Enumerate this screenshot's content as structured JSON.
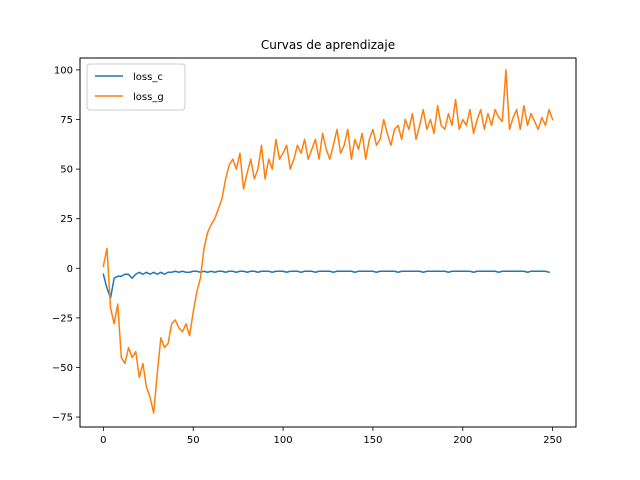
{
  "chart_data": {
    "type": "line",
    "title": "Curvas de aprendizaje",
    "xlabel": "",
    "ylabel": "",
    "xlim": [
      -13,
      263
    ],
    "ylim": [
      -80,
      106
    ],
    "xticks": [
      0,
      50,
      100,
      150,
      200,
      250
    ],
    "yticks": [
      -75,
      -50,
      -25,
      0,
      25,
      50,
      75,
      100
    ],
    "grid": false,
    "legend": "top-left",
    "x_start": 0,
    "x_step": 2,
    "series": [
      {
        "name": "loss_c",
        "color": "#1f77b4",
        "values": [
          -3,
          -10,
          -15,
          -5,
          -4,
          -4,
          -3,
          -3,
          -5,
          -3,
          -2,
          -3,
          -2,
          -3,
          -2,
          -3,
          -2,
          -3,
          -2,
          -2,
          -1.5,
          -2,
          -1.5,
          -2,
          -2,
          -1.5,
          -1.5,
          -2,
          -1.5,
          -2,
          -1.5,
          -2,
          -1.5,
          -1.5,
          -2,
          -1.5,
          -1.5,
          -2,
          -1.5,
          -1.5,
          -2,
          -1.5,
          -1.5,
          -2,
          -1.5,
          -1.5,
          -1.5,
          -2,
          -1.5,
          -1.5,
          -1.5,
          -2,
          -1.5,
          -1.5,
          -1.5,
          -2,
          -1.5,
          -1.5,
          -1.5,
          -2,
          -1.5,
          -1.5,
          -1.5,
          -1.5,
          -2,
          -1.5,
          -1.5,
          -1.5,
          -1.5,
          -1.5,
          -2,
          -1.5,
          -1.5,
          -1.5,
          -1.5,
          -1.5,
          -2,
          -1.5,
          -1.5,
          -1.5,
          -1.5,
          -1.5,
          -2,
          -1.5,
          -1.5,
          -1.5,
          -1.5,
          -1.5,
          -1.5,
          -2,
          -1.5,
          -1.5,
          -1.5,
          -1.5,
          -1.5,
          -1.5,
          -2,
          -1.5,
          -1.5,
          -1.5,
          -1.5,
          -1.5,
          -1.5,
          -2,
          -1.5,
          -1.5,
          -1.5,
          -1.5,
          -1.5,
          -1.5,
          -2,
          -1.5,
          -1.5,
          -1.5,
          -1.5,
          -1.5,
          -1.5,
          -1.5,
          -2,
          -1.5,
          -1.5,
          -1.5,
          -1.5,
          -1.5,
          -2
        ]
      },
      {
        "name": "loss_g",
        "color": "#ff7f0e",
        "values": [
          1,
          10,
          -20,
          -28,
          -18,
          -45,
          -48,
          -40,
          -45,
          -42,
          -55,
          -48,
          -60,
          -65,
          -73,
          -53,
          -35,
          -40,
          -38,
          -28,
          -26,
          -30,
          -32,
          -28,
          -34,
          -22,
          -12,
          -5,
          10,
          18,
          22,
          25,
          30,
          35,
          45,
          52,
          55,
          50,
          58,
          40,
          48,
          55,
          45,
          50,
          62,
          45,
          55,
          50,
          65,
          55,
          58,
          62,
          50,
          55,
          62,
          58,
          65,
          55,
          60,
          65,
          55,
          68,
          60,
          55,
          62,
          70,
          58,
          62,
          70,
          55,
          65,
          60,
          68,
          55,
          65,
          70,
          62,
          65,
          75,
          68,
          62,
          70,
          72,
          65,
          75,
          70,
          78,
          65,
          72,
          80,
          70,
          75,
          68,
          82,
          72,
          70,
          78,
          72,
          85,
          70,
          75,
          72,
          80,
          68,
          75,
          80,
          70,
          78,
          72,
          80,
          76,
          74,
          100,
          70,
          76,
          80,
          70,
          82,
          72,
          78,
          74,
          70,
          76,
          72,
          80,
          75
        ]
      }
    ]
  }
}
